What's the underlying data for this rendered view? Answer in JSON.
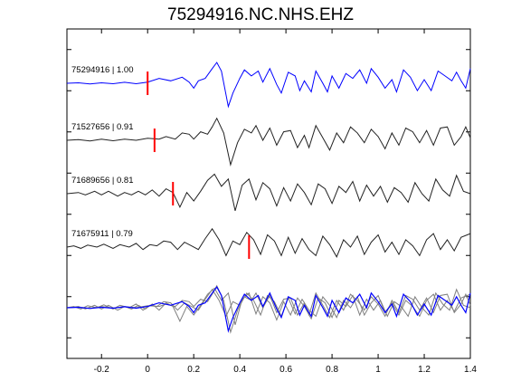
{
  "figure": {
    "title": "75294916.NC.NHS.EHZ"
  },
  "colors": {
    "master": "#0000ff",
    "other": "#222222",
    "overlay_other": "#808080",
    "pick": "#ff0000",
    "axes": "#000000"
  },
  "chart_data": {
    "type": "line",
    "title": "75294916.NC.NHS.EHZ",
    "xlabel": "",
    "ylabel": "",
    "xlim": [
      -0.35,
      1.4
    ],
    "x_ticks": [
      -0.2,
      0,
      0.2,
      0.4,
      0.6,
      0.8,
      1.0,
      1.2,
      1.4
    ],
    "x_tick_labels": [
      "-0.2",
      "0",
      "0.2",
      "0.4",
      "0.6",
      "0.8",
      "1",
      "1.2",
      "1.4"
    ],
    "y_ticks_count": 8,
    "grid": false,
    "description_of_series": "Stacked seismograms, each trace labeled with event id and correlation coefficient; red bar marks the pick time; bottom panel overlays all traces aligned.",
    "series": [
      {
        "name": "75294916 | 1.00",
        "label": "75294916 | 1.00",
        "color": "master",
        "pick_time": 0.0,
        "shift": 0.0,
        "amp": 1.0,
        "points": [
          [
            -0.35,
            0.0
          ],
          [
            -0.3,
            0.02
          ],
          [
            -0.25,
            -0.03
          ],
          [
            -0.2,
            0.02
          ],
          [
            -0.15,
            -0.02
          ],
          [
            -0.1,
            0.04
          ],
          [
            -0.05,
            -0.02
          ],
          [
            0.0,
            0.05
          ],
          [
            0.05,
            0.2
          ],
          [
            0.1,
            0.1
          ],
          [
            0.15,
            0.25
          ],
          [
            0.18,
            0.05
          ],
          [
            0.2,
            -0.2
          ],
          [
            0.22,
            0.1
          ],
          [
            0.25,
            0.2
          ],
          [
            0.28,
            0.6
          ],
          [
            0.3,
            0.85
          ],
          [
            0.32,
            0.5
          ],
          [
            0.35,
            -0.95
          ],
          [
            0.37,
            -0.4
          ],
          [
            0.4,
            0.2
          ],
          [
            0.42,
            0.55
          ],
          [
            0.45,
            0.3
          ],
          [
            0.48,
            0.5
          ],
          [
            0.5,
            0.05
          ],
          [
            0.53,
            0.6
          ],
          [
            0.56,
            -0.05
          ],
          [
            0.58,
            -0.4
          ],
          [
            0.61,
            0.45
          ],
          [
            0.64,
            0.3
          ],
          [
            0.66,
            -0.3
          ],
          [
            0.68,
            0.1
          ],
          [
            0.71,
            -0.35
          ],
          [
            0.73,
            0.5
          ],
          [
            0.76,
            0.0
          ],
          [
            0.78,
            -0.35
          ],
          [
            0.8,
            0.3
          ],
          [
            0.83,
            -0.2
          ],
          [
            0.86,
            0.4
          ],
          [
            0.89,
            0.2
          ],
          [
            0.92,
            0.55
          ],
          [
            0.95,
            0.0
          ],
          [
            0.97,
            0.6
          ],
          [
            1.0,
            0.25
          ],
          [
            1.03,
            -0.2
          ],
          [
            1.06,
            0.15
          ],
          [
            1.08,
            -0.35
          ],
          [
            1.11,
            0.55
          ],
          [
            1.14,
            0.25
          ],
          [
            1.17,
            -0.3
          ],
          [
            1.2,
            0.15
          ],
          [
            1.23,
            -0.3
          ],
          [
            1.26,
            0.5
          ],
          [
            1.29,
            0.3
          ],
          [
            1.32,
            0.1
          ],
          [
            1.34,
            0.45
          ],
          [
            1.36,
            0.1
          ],
          [
            1.38,
            -0.2
          ],
          [
            1.4,
            0.6
          ]
        ]
      },
      {
        "name": "71527656 | 0.91",
        "label": "71527656 | 0.91",
        "color": "other",
        "pick_time": 0.03,
        "shift": 0.0,
        "amp": 1.0,
        "points": [
          [
            -0.35,
            0.0
          ],
          [
            -0.3,
            0.03
          ],
          [
            -0.25,
            -0.03
          ],
          [
            -0.2,
            0.05
          ],
          [
            -0.15,
            -0.02
          ],
          [
            -0.1,
            0.05
          ],
          [
            -0.05,
            0.0
          ],
          [
            0.0,
            0.08
          ],
          [
            0.05,
            0.05
          ],
          [
            0.08,
            0.15
          ],
          [
            0.12,
            0.05
          ],
          [
            0.15,
            0.3
          ],
          [
            0.18,
            0.25
          ],
          [
            0.2,
            0.05
          ],
          [
            0.23,
            0.35
          ],
          [
            0.26,
            0.25
          ],
          [
            0.28,
            0.55
          ],
          [
            0.3,
            0.9
          ],
          [
            0.33,
            0.3
          ],
          [
            0.36,
            -1.0
          ],
          [
            0.39,
            -0.1
          ],
          [
            0.42,
            0.45
          ],
          [
            0.45,
            0.3
          ],
          [
            0.47,
            0.6
          ],
          [
            0.5,
            0.0
          ],
          [
            0.53,
            0.5
          ],
          [
            0.56,
            -0.2
          ],
          [
            0.59,
            0.35
          ],
          [
            0.62,
            0.4
          ],
          [
            0.65,
            -0.3
          ],
          [
            0.68,
            0.2
          ],
          [
            0.7,
            -0.3
          ],
          [
            0.73,
            0.6
          ],
          [
            0.76,
            0.1
          ],
          [
            0.79,
            -0.4
          ],
          [
            0.82,
            0.3
          ],
          [
            0.85,
            -0.1
          ],
          [
            0.88,
            0.55
          ],
          [
            0.91,
            0.3
          ],
          [
            0.94,
            -0.1
          ],
          [
            0.97,
            0.45
          ],
          [
            1.0,
            0.15
          ],
          [
            1.03,
            -0.35
          ],
          [
            1.06,
            0.3
          ],
          [
            1.09,
            -0.2
          ],
          [
            1.12,
            0.5
          ],
          [
            1.15,
            0.35
          ],
          [
            1.18,
            -0.1
          ],
          [
            1.21,
            0.4
          ],
          [
            1.24,
            -0.2
          ],
          [
            1.27,
            0.5
          ],
          [
            1.3,
            0.55
          ],
          [
            1.33,
            -0.2
          ],
          [
            1.36,
            0.15
          ],
          [
            1.38,
            0.55
          ],
          [
            1.4,
            0.1
          ]
        ]
      },
      {
        "name": "71689656 | 0.81",
        "label": "71689656 | 0.81",
        "color": "other",
        "pick_time": 0.11,
        "shift": 0.0,
        "amp": 1.0,
        "points": [
          [
            -0.35,
            0.0
          ],
          [
            -0.3,
            0.05
          ],
          [
            -0.27,
            -0.05
          ],
          [
            -0.23,
            0.1
          ],
          [
            -0.2,
            -0.05
          ],
          [
            -0.17,
            0.1
          ],
          [
            -0.13,
            -0.1
          ],
          [
            -0.1,
            0.05
          ],
          [
            -0.07,
            -0.05
          ],
          [
            -0.04,
            0.1
          ],
          [
            -0.01,
            -0.05
          ],
          [
            0.02,
            0.15
          ],
          [
            0.05,
            -0.1
          ],
          [
            0.08,
            0.2
          ],
          [
            0.11,
            0.05
          ],
          [
            0.14,
            -0.55
          ],
          [
            0.17,
            0.05
          ],
          [
            0.2,
            -0.3
          ],
          [
            0.23,
            0.1
          ],
          [
            0.26,
            0.55
          ],
          [
            0.29,
            0.8
          ],
          [
            0.32,
            0.3
          ],
          [
            0.35,
            0.6
          ],
          [
            0.38,
            -0.7
          ],
          [
            0.41,
            0.35
          ],
          [
            0.44,
            0.6
          ],
          [
            0.47,
            -0.25
          ],
          [
            0.5,
            0.45
          ],
          [
            0.53,
            0.2
          ],
          [
            0.56,
            -0.5
          ],
          [
            0.59,
            0.25
          ],
          [
            0.62,
            -0.3
          ],
          [
            0.65,
            0.4
          ],
          [
            0.68,
            0.05
          ],
          [
            0.71,
            -0.45
          ],
          [
            0.74,
            0.4
          ],
          [
            0.77,
            0.2
          ],
          [
            0.8,
            -0.4
          ],
          [
            0.83,
            0.3
          ],
          [
            0.86,
            0.05
          ],
          [
            0.89,
            0.5
          ],
          [
            0.92,
            -0.3
          ],
          [
            0.95,
            0.35
          ],
          [
            0.98,
            -0.1
          ],
          [
            1.01,
            0.3
          ],
          [
            1.04,
            -0.35
          ],
          [
            1.07,
            0.25
          ],
          [
            1.1,
            0.05
          ],
          [
            1.13,
            -0.35
          ],
          [
            1.16,
            0.45
          ],
          [
            1.19,
            0.0
          ],
          [
            1.22,
            -0.3
          ],
          [
            1.25,
            0.6
          ],
          [
            1.28,
            0.15
          ],
          [
            1.31,
            -0.1
          ],
          [
            1.34,
            0.75
          ],
          [
            1.37,
            0.1
          ],
          [
            1.4,
            0.0
          ]
        ]
      },
      {
        "name": "71675911 | 0.79",
        "label": "71675911 | 0.79",
        "color": "other",
        "pick_time": 0.44,
        "shift": 0.0,
        "amp": 1.0,
        "points": [
          [
            -0.35,
            0.0
          ],
          [
            -0.32,
            0.05
          ],
          [
            -0.29,
            -0.05
          ],
          [
            -0.26,
            0.08
          ],
          [
            -0.22,
            0.0
          ],
          [
            -0.19,
            0.12
          ],
          [
            -0.15,
            -0.05
          ],
          [
            -0.12,
            0.1
          ],
          [
            -0.08,
            0.0
          ],
          [
            -0.05,
            0.15
          ],
          [
            -0.02,
            -0.1
          ],
          [
            0.01,
            0.1
          ],
          [
            0.04,
            0.05
          ],
          [
            0.07,
            0.25
          ],
          [
            0.1,
            0.2
          ],
          [
            0.13,
            -0.1
          ],
          [
            0.16,
            0.2
          ],
          [
            0.19,
            0.05
          ],
          [
            0.22,
            -0.1
          ],
          [
            0.25,
            0.35
          ],
          [
            0.28,
            0.75
          ],
          [
            0.31,
            0.3
          ],
          [
            0.34,
            -0.35
          ],
          [
            0.37,
            0.25
          ],
          [
            0.4,
            0.1
          ],
          [
            0.43,
            0.6
          ],
          [
            0.46,
            0.3
          ],
          [
            0.49,
            -0.3
          ],
          [
            0.52,
            0.5
          ],
          [
            0.55,
            0.25
          ],
          [
            0.58,
            -0.35
          ],
          [
            0.61,
            0.4
          ],
          [
            0.64,
            -0.25
          ],
          [
            0.67,
            0.35
          ],
          [
            0.7,
            -0.1
          ],
          [
            0.73,
            -0.35
          ],
          [
            0.76,
            0.45
          ],
          [
            0.79,
            0.1
          ],
          [
            0.82,
            -0.4
          ],
          [
            0.85,
            0.3
          ],
          [
            0.88,
            0.0
          ],
          [
            0.91,
            0.45
          ],
          [
            0.94,
            -0.3
          ],
          [
            0.97,
            0.2
          ],
          [
            1.0,
            0.5
          ],
          [
            1.03,
            -0.2
          ],
          [
            1.06,
            0.2
          ],
          [
            1.09,
            -0.3
          ],
          [
            1.12,
            0.3
          ],
          [
            1.15,
            0.05
          ],
          [
            1.18,
            -0.35
          ],
          [
            1.21,
            0.3
          ],
          [
            1.24,
            0.55
          ],
          [
            1.27,
            -0.1
          ],
          [
            1.3,
            0.3
          ],
          [
            1.33,
            -0.15
          ],
          [
            1.36,
            0.4
          ],
          [
            1.4,
            0.55
          ]
        ]
      }
    ]
  }
}
